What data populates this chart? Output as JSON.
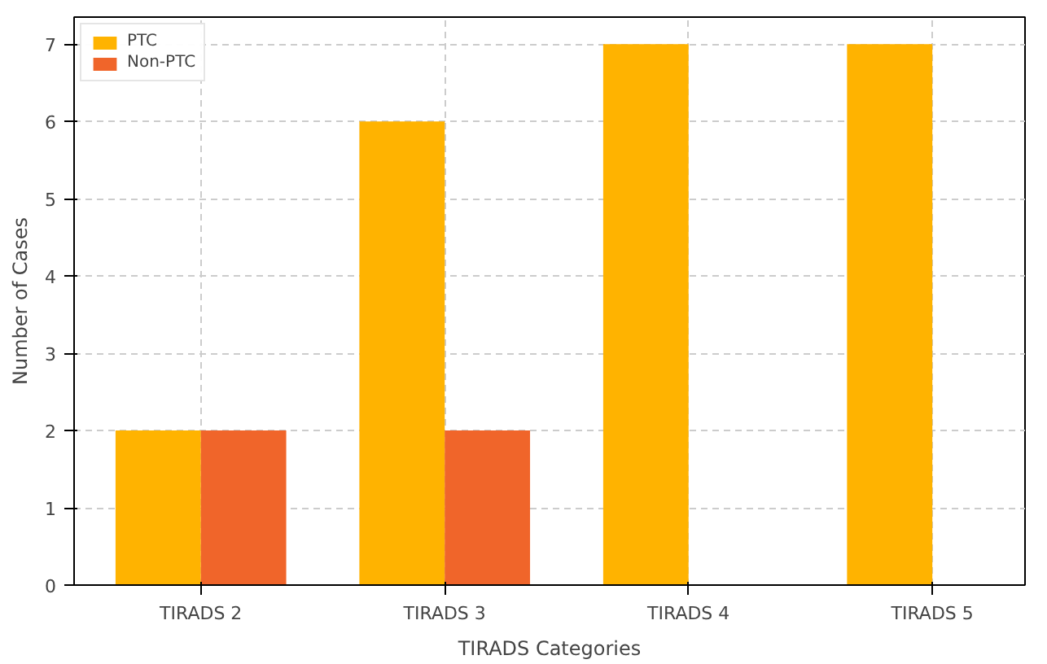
{
  "chart_data": {
    "type": "bar",
    "xlabel": "TIRADS Categories",
    "ylabel": "Number of Cases",
    "categories": [
      "TIRADS 2",
      "TIRADS 3",
      "TIRADS 4",
      "TIRADS 5"
    ],
    "series": [
      {
        "name": "PTC",
        "color": "#ffb300",
        "values": [
          2,
          6,
          7,
          7
        ]
      },
      {
        "name": "Non-PTC",
        "color": "#f0652a",
        "values": [
          2,
          2,
          0,
          0
        ]
      }
    ],
    "ylim": [
      0,
      7.35
    ],
    "yticks": [
      0,
      1,
      2,
      3,
      4,
      5,
      6,
      7
    ],
    "grid": true,
    "legend": "top left"
  }
}
